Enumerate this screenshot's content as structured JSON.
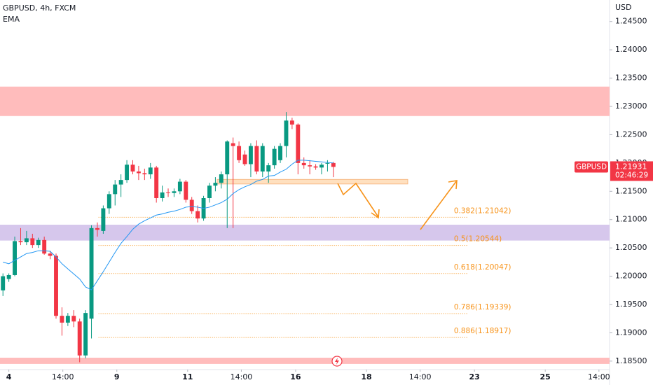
{
  "chart_data": {
    "type": "candlestick",
    "title": "GBPUSD, 4h, FXCM",
    "currency": "USD",
    "up_color": "#089981",
    "down_color": "#f23645",
    "x": [
      -1,
      0,
      1,
      2,
      3,
      4,
      5,
      6,
      7,
      8,
      9,
      10,
      11,
      12,
      13,
      14,
      15,
      16,
      17,
      18,
      19,
      20,
      21,
      22,
      23,
      24,
      25,
      26,
      27,
      28,
      29,
      30,
      31,
      32,
      33,
      34,
      35,
      36,
      37,
      38,
      39,
      40,
      41,
      42,
      43,
      44,
      45,
      46,
      47,
      48,
      49,
      50,
      51,
      52,
      53,
      54,
      55
    ],
    "open": [
      1.1975,
      1.1995,
      1.2002,
      1.2062,
      1.206,
      1.2067,
      1.2055,
      1.2064,
      1.204,
      1.2036,
      1.193,
      1.1918,
      1.193,
      1.192,
      1.186,
      1.1925,
      1.2085,
      1.208,
      1.212,
      1.2145,
      1.2162,
      1.217,
      1.2197,
      1.2185,
      1.2182,
      1.218,
      1.2192,
      1.2138,
      1.2148,
      1.2147,
      1.215,
      1.2167,
      1.2135,
      1.2115,
      1.2102,
      1.2138,
      1.216,
      1.2165,
      1.218,
      1.2235,
      1.223,
      1.2215,
      1.2198,
      1.223,
      1.2185,
      1.2185,
      1.2196,
      1.2205,
      1.223,
      1.2275,
      1.2268,
      1.22,
      1.2196,
      1.2194,
      1.2192,
      1.22,
      1.22
    ],
    "high": [
      1.2005,
      1.2005,
      1.207,
      1.2085,
      1.208,
      1.2075,
      1.2068,
      1.207,
      1.2045,
      1.204,
      1.1945,
      1.1935,
      1.194,
      1.1925,
      1.194,
      1.209,
      1.2095,
      1.2125,
      1.215,
      1.217,
      1.218,
      1.2205,
      1.2205,
      1.2195,
      1.219,
      1.22,
      1.2195,
      1.216,
      1.2155,
      1.2155,
      1.2172,
      1.217,
      1.214,
      1.2125,
      1.2142,
      1.2165,
      1.2175,
      1.2185,
      1.224,
      1.2245,
      1.2238,
      1.2222,
      1.2235,
      1.224,
      1.2235,
      1.22,
      1.223,
      1.2235,
      1.229,
      1.228,
      1.227,
      1.221,
      1.2205,
      1.2198,
      1.22,
      1.2205,
      1.2202
    ],
    "low": [
      1.1965,
      1.199,
      1.2,
      1.2055,
      1.2055,
      1.205,
      1.205,
      1.2038,
      1.203,
      1.1925,
      1.1895,
      1.1912,
      1.191,
      1.1848,
      1.1855,
      1.189,
      1.207,
      1.2075,
      1.211,
      1.2125,
      1.214,
      1.2165,
      1.218,
      1.217,
      1.217,
      1.2172,
      1.213,
      1.2132,
      1.214,
      1.214,
      1.2145,
      1.213,
      1.211,
      1.2095,
      1.2098,
      1.213,
      1.215,
      1.2155,
      1.2085,
      1.2085,
      1.22,
      1.2195,
      1.2175,
      1.218,
      1.2175,
      1.2165,
      1.219,
      1.22,
      1.221,
      1.226,
      1.218,
      1.219,
      1.218,
      1.2188,
      1.218,
      1.2185,
      1.2175
    ],
    "close": [
      1.2,
      1.2002,
      1.2062,
      1.206,
      1.2067,
      1.2055,
      1.2064,
      1.204,
      1.2036,
      1.193,
      1.1918,
      1.193,
      1.192,
      1.186,
      1.1935,
      1.2085,
      1.2082,
      1.212,
      1.2145,
      1.2162,
      1.217,
      1.2197,
      1.2185,
      1.2182,
      1.218,
      1.2192,
      1.2138,
      1.2148,
      1.2147,
      1.215,
      1.2167,
      1.2135,
      1.2115,
      1.2102,
      1.2138,
      1.216,
      1.2165,
      1.218,
      1.2238,
      1.223,
      1.2205,
      1.2198,
      1.223,
      1.2185,
      1.223,
      1.2196,
      1.2225,
      1.223,
      1.2275,
      1.2268,
      1.22,
      1.2196,
      1.2194,
      1.2192,
      1.2197,
      1.22,
      1.21931
    ],
    "ema": {
      "name": "EMA",
      "color": "#2196f3",
      "values": [
        1.2025,
        1.2022,
        1.2028,
        1.2034,
        1.204,
        1.2042,
        1.2045,
        1.2045,
        1.2044,
        1.2034,
        1.2022,
        1.2013,
        1.2004,
        1.1995,
        1.1981,
        1.1976,
        1.1992,
        1.2008,
        1.2025,
        1.2042,
        1.2058,
        1.207,
        1.2083,
        1.2092,
        1.2098,
        1.2103,
        1.2108,
        1.211,
        1.2113,
        1.2115,
        1.2118,
        1.2122,
        1.2123,
        1.2122,
        1.212,
        1.2122,
        1.2126,
        1.213,
        1.2136,
        1.2146,
        1.2153,
        1.2158,
        1.2162,
        1.2168,
        1.2171,
        1.2177,
        1.2178,
        1.2184,
        1.2189,
        1.2198,
        1.2205,
        1.2205,
        1.2204,
        1.2203,
        1.2202,
        1.2201,
        1.22
      ]
    },
    "xlim": [
      -1.5,
      101.8
    ],
    "ylim": [
      1.1835,
      1.2488
    ],
    "xticks": [
      {
        "value": 0,
        "label": "4"
      },
      {
        "value": 9.15,
        "label": "14:00"
      },
      {
        "value": 18.3,
        "label": "9"
      },
      {
        "value": 30.3,
        "label": "11"
      },
      {
        "value": 39.4,
        "label": "14:00"
      },
      {
        "value": 48.6,
        "label": "16"
      },
      {
        "value": 60.6,
        "label": "18"
      },
      {
        "value": 69.7,
        "label": "14:00"
      },
      {
        "value": 78.9,
        "label": "23"
      },
      {
        "value": 90.9,
        "label": "25"
      },
      {
        "value": 100,
        "label": "14:00"
      }
    ],
    "yticks": [
      {
        "value": 1.245,
        "label": "1.24500"
      },
      {
        "value": 1.24,
        "label": "1.24000"
      },
      {
        "value": 1.235,
        "label": "1.23500"
      },
      {
        "value": 1.23,
        "label": "1.23000"
      },
      {
        "value": 1.225,
        "label": "1.22500"
      },
      {
        "value": 1.22,
        "label": "1.22000"
      },
      {
        "value": 1.215,
        "label": "1.21500"
      },
      {
        "value": 1.21,
        "label": "1.21000"
      },
      {
        "value": 1.205,
        "label": "1.20500"
      },
      {
        "value": 1.2,
        "label": "1.20000"
      },
      {
        "value": 1.195,
        "label": "1.19500"
      },
      {
        "value": 1.19,
        "label": "1.19000"
      },
      {
        "value": 1.185,
        "label": "1.18500"
      }
    ],
    "zones": [
      {
        "from": 1.2283,
        "to": 1.2335,
        "color": "#ffbcbc"
      },
      {
        "from": 1.2063,
        "to": 1.2091,
        "color": "#d6c7ec"
      },
      {
        "from": 1.1845,
        "to": 1.1856,
        "color": "#ffbcbc"
      },
      {
        "from": 1.2163,
        "to": 1.2171,
        "color": "#ffe0bf",
        "x": [
          35.3,
          67.6
        ]
      }
    ],
    "fib_x": [
      15.2,
      77.8
    ],
    "fib_levels": [
      {
        "label": "0.382(1.21042)",
        "value": 1.21042
      },
      {
        "label": "0.5(1.20544)",
        "value": 1.20544
      },
      {
        "label": "0.618(1.20047)",
        "value": 1.20047
      },
      {
        "label": "0.786(1.19339)",
        "value": 1.19339
      },
      {
        "label": "0.886(1.18917)",
        "value": 1.18917
      }
    ],
    "symbol": "GBPUSD",
    "price": 1.21931,
    "countdown": "02:46:29"
  }
}
